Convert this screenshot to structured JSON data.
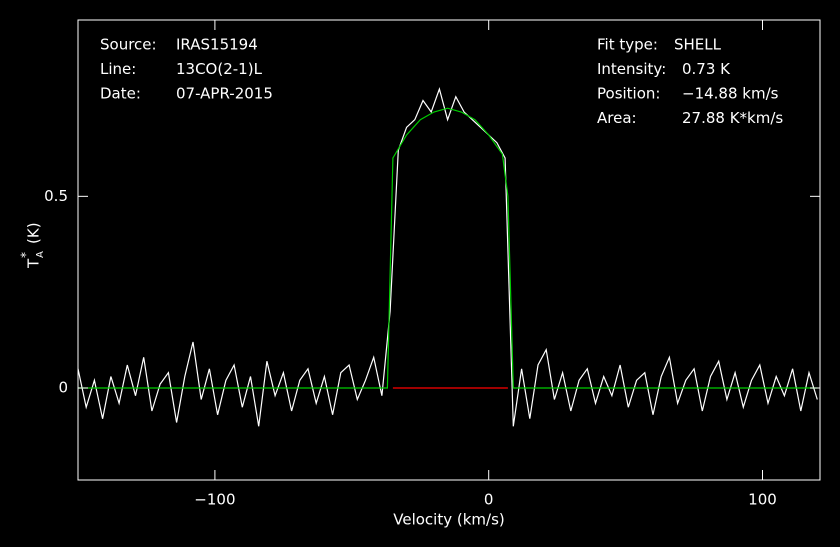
{
  "chart_data": {
    "type": "line",
    "xlabel": "Velocity (km/s)",
    "ylabel": {
      "main": "T",
      "sub": "A",
      "sup": "*",
      "unit": "(K)"
    },
    "xlim": [
      -150,
      121
    ],
    "ylim": [
      -0.24,
      0.96
    ],
    "xticks": [
      {
        "value": -100,
        "label": "−100"
      },
      0,
      100
    ],
    "yticks": [
      0,
      0.5
    ],
    "annotations_left": [
      {
        "label": "Source:",
        "text": "IRAS15194"
      },
      {
        "label": "Line:",
        "text": "13CO(2-1)L"
      },
      {
        "label": "Date:",
        "text": "07-APR-2015"
      }
    ],
    "annotations_right": [
      {
        "label": "Fit type:",
        "text": "SHELL"
      },
      {
        "label": "Intensity:",
        "text": "0.73 K"
      },
      {
        "label": "Position:",
        "text": "−14.88 km/s"
      },
      {
        "label": "Area:",
        "text": "27.88 K*km/s"
      }
    ],
    "series": [
      {
        "color": "#ffffff",
        "x": [
          -150,
          -147,
          -144,
          -141,
          -138,
          -135,
          -132,
          -129,
          -126,
          -123,
          -120,
          -117,
          -114,
          -111,
          -108,
          -105,
          -102,
          -99,
          -96,
          -93,
          -90,
          -87,
          -84,
          -81,
          -78,
          -75,
          -72,
          -69,
          -66,
          -63,
          -60,
          -57,
          -54,
          -51,
          -48,
          -45,
          -42,
          -39,
          -36,
          -33,
          -30,
          -27,
          -24,
          -21,
          -18,
          -15,
          -12,
          -9,
          -6,
          -3,
          0,
          3,
          6,
          9,
          12,
          15,
          18,
          21,
          24,
          27,
          30,
          33,
          36,
          39,
          42,
          45,
          48,
          51,
          54,
          57,
          60,
          63,
          66,
          69,
          72,
          75,
          78,
          81,
          84,
          87,
          90,
          93,
          96,
          99,
          102,
          105,
          108,
          111,
          114,
          117,
          120
        ],
        "values": [
          0.05,
          -0.05,
          0.02,
          -0.08,
          0.03,
          -0.04,
          0.06,
          -0.02,
          0.08,
          -0.06,
          0.01,
          0.04,
          -0.09,
          0.03,
          0.12,
          -0.03,
          0.05,
          -0.07,
          0.02,
          0.06,
          -0.05,
          0.03,
          -0.1,
          0.07,
          -0.02,
          0.04,
          -0.06,
          0.02,
          0.05,
          -0.04,
          0.03,
          -0.07,
          0.04,
          0.06,
          -0.03,
          0.02,
          0.08,
          -0.02,
          0.2,
          0.62,
          0.68,
          0.7,
          0.75,
          0.72,
          0.78,
          0.7,
          0.76,
          0.72,
          0.7,
          0.68,
          0.66,
          0.64,
          0.6,
          -0.1,
          0.05,
          -0.08,
          0.06,
          0.1,
          -0.03,
          0.04,
          -0.06,
          0.02,
          0.05,
          -0.04,
          0.03,
          -0.02,
          0.06,
          -0.05,
          0.02,
          0.04,
          -0.07,
          0.03,
          0.08,
          -0.04,
          0.02,
          0.05,
          -0.06,
          0.03,
          0.07,
          -0.03,
          0.04,
          -0.05,
          0.02,
          0.06,
          -0.04,
          0.03,
          -0.02,
          0.05,
          -0.06,
          0.04,
          -0.03
        ]
      },
      {
        "color": "#ff0000",
        "x": [
          -35,
          7
        ],
        "values": [
          0,
          0
        ]
      },
      {
        "color": "#00cc00",
        "x": [
          -150,
          -37,
          -35,
          -30,
          -25,
          -20,
          -15,
          -10,
          -5,
          0,
          5,
          7,
          9,
          120
        ],
        "values": [
          0,
          0,
          0.6,
          0.66,
          0.7,
          0.72,
          0.73,
          0.72,
          0.7,
          0.66,
          0.61,
          0.5,
          0,
          0
        ]
      }
    ]
  }
}
